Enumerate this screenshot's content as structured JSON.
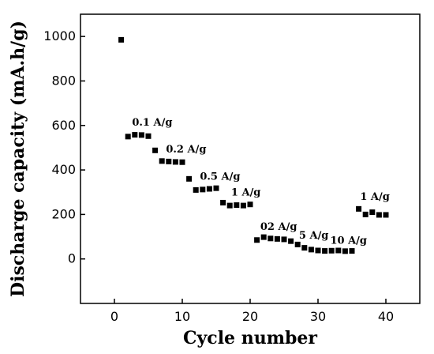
{
  "chart_data": {
    "type": "scatter",
    "title": "",
    "xlabel": "Cycle number",
    "ylabel": "Discharge capacity (mA.h/g)",
    "xlim": [
      -5,
      45
    ],
    "ylim": [
      -200,
      1100
    ],
    "xticks": [
      0,
      10,
      20,
      30,
      40
    ],
    "yticks": [
      0,
      200,
      400,
      600,
      800,
      1000
    ],
    "grid": false,
    "legend": "none",
    "marker": "square",
    "color": "#000000",
    "series": [
      {
        "x": [
          1,
          2,
          3,
          4,
          5,
          6,
          7,
          8,
          9,
          10,
          11,
          12,
          13,
          14,
          15,
          16,
          17,
          18,
          19,
          20,
          21,
          22,
          23,
          24,
          25,
          26,
          27,
          28,
          29,
          30,
          31,
          32,
          33,
          34,
          35,
          36,
          37,
          38,
          39,
          40
        ],
        "y": [
          985,
          550,
          558,
          557,
          552,
          488,
          440,
          438,
          436,
          435,
          360,
          310,
          312,
          315,
          318,
          253,
          240,
          242,
          240,
          245,
          85,
          98,
          92,
          90,
          88,
          80,
          65,
          50,
          42,
          38,
          36,
          37,
          38,
          35,
          36,
          225,
          200,
          210,
          198,
          198
        ]
      }
    ],
    "annotations": [
      {
        "text": "0.1 A/g",
        "x": 2.6,
        "y": 600
      },
      {
        "text": "0.2 A/g",
        "x": 7.6,
        "y": 478
      },
      {
        "text": "0.5 A/g",
        "x": 12.6,
        "y": 355
      },
      {
        "text": "1 A/g",
        "x": 17.2,
        "y": 285
      },
      {
        "text": "02 A/g",
        "x": 21.5,
        "y": 130
      },
      {
        "text": "5 A/g",
        "x": 27.2,
        "y": 92
      },
      {
        "text": "10 A/g",
        "x": 31.8,
        "y": 68
      },
      {
        "text": "1 A/g",
        "x": 36.2,
        "y": 265
      }
    ]
  }
}
